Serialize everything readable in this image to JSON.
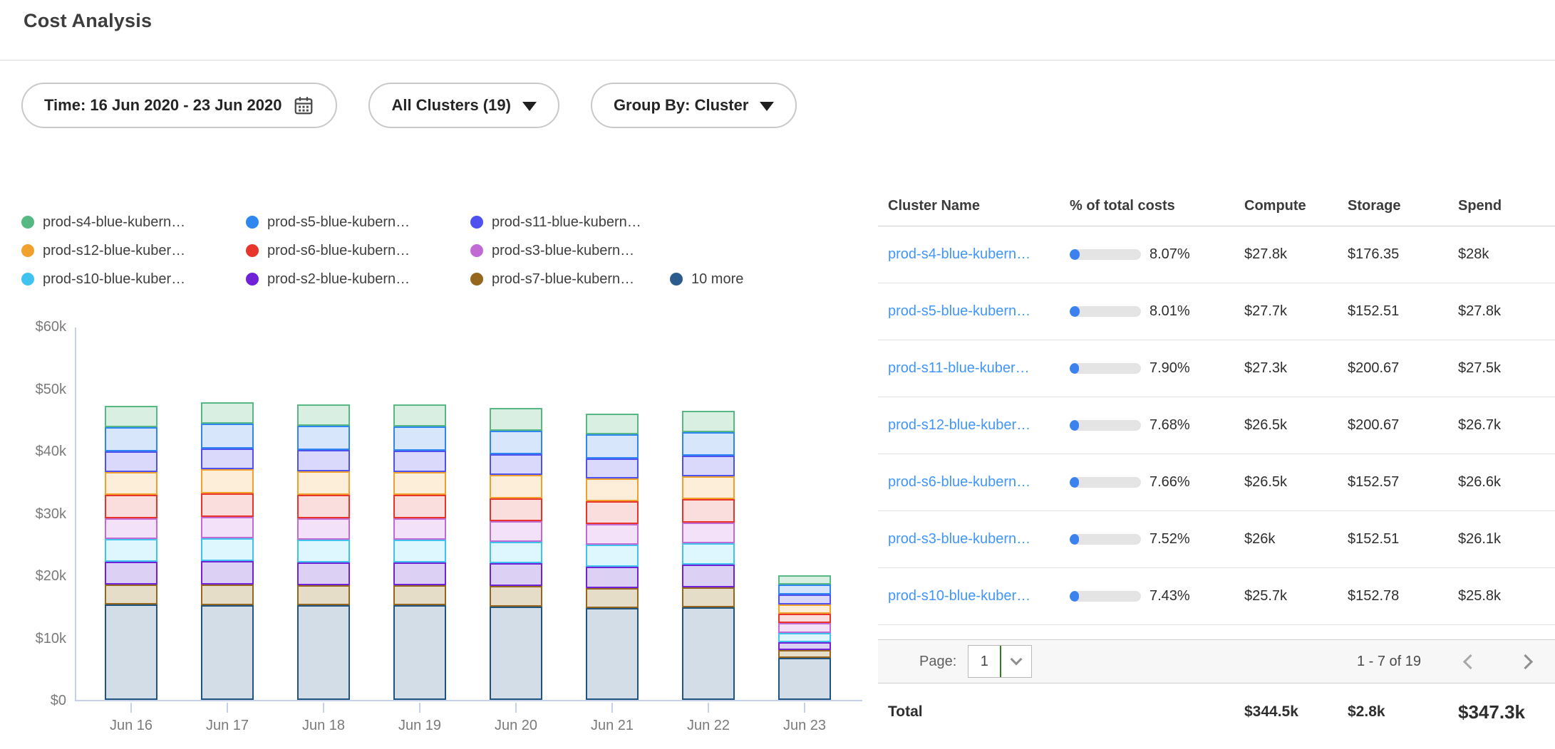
{
  "page": {
    "title": "Cost Analysis"
  },
  "filters": {
    "time_label": "Time: 16 Jun 2020 - 23 Jun 2020",
    "clusters_label": "All Clusters (19)",
    "group_by_label": "Group By: Cluster"
  },
  "colors": {
    "link_blue": "#4196f8",
    "progress_fill": "#3b82f0",
    "progress_track": "#e4e4e4",
    "axis_line": "#c5d0ec",
    "select_divider_green": "#2e7d1f",
    "pagebar_bg": "#f7f7f7"
  },
  "chart_data": {
    "type": "bar",
    "stacked": true,
    "title": "",
    "xlabel": "",
    "ylabel": "",
    "unit": "USD",
    "grid": false,
    "legend_position": "top-left",
    "ylim": [
      0,
      60000
    ],
    "y_ticks": [
      {
        "label": "$60k",
        "value": 60000
      },
      {
        "label": "$50k",
        "value": 50000
      },
      {
        "label": "$40k",
        "value": 40000
      },
      {
        "label": "$30k",
        "value": 30000
      },
      {
        "label": "$20k",
        "value": 20000
      },
      {
        "label": "$10k",
        "value": 10000
      },
      {
        "label": "$0",
        "value": 0
      }
    ],
    "categories": [
      "Jun 16",
      "Jun 17",
      "Jun 18",
      "Jun 19",
      "Jun 20",
      "Jun 21",
      "Jun 22",
      "Jun 23"
    ],
    "series": [
      {
        "name": "prod-s4-blue-kubern…",
        "color": "#57b884",
        "fill": "#d8efe2",
        "values": [
          3400,
          3450,
          3400,
          3500,
          3700,
          3300,
          3400,
          1500
        ]
      },
      {
        "name": "prod-s5-blue-kubern…",
        "color": "#2e86f0",
        "fill": "#d8e6fb",
        "values": [
          3900,
          3950,
          3900,
          3900,
          3800,
          3800,
          3800,
          1600
        ]
      },
      {
        "name": "prod-s11-blue-kubern…",
        "color": "#4f52ef",
        "fill": "#dbd9fb",
        "values": [
          3300,
          3400,
          3400,
          3400,
          3300,
          3300,
          3300,
          1600
        ]
      },
      {
        "name": "prod-s12-blue-kuber…",
        "color": "#f0a12d",
        "fill": "#fceed8",
        "values": [
          3700,
          3800,
          3800,
          3700,
          3700,
          3600,
          3700,
          1500
        ]
      },
      {
        "name": "prod-s6-blue-kubern…",
        "color": "#e8342a",
        "fill": "#fadedd",
        "values": [
          3800,
          3800,
          3800,
          3800,
          3700,
          3700,
          3700,
          1500
        ]
      },
      {
        "name": "prod-s3-blue-kubern…",
        "color": "#c06ad4",
        "fill": "#f3e1f9",
        "values": [
          3300,
          3400,
          3400,
          3400,
          3300,
          3300,
          3300,
          1500
        ]
      },
      {
        "name": "prod-s10-blue-kuber…",
        "color": "#3fc2ee",
        "fill": "#def6fd",
        "values": [
          3600,
          3700,
          3600,
          3600,
          3500,
          3500,
          3500,
          1500
        ]
      },
      {
        "name": "prod-s2-blue-kubern…",
        "color": "#6f22d8",
        "fill": "#ddd0f5",
        "values": [
          3700,
          3800,
          3700,
          3700,
          3600,
          3500,
          3600,
          1300
        ]
      },
      {
        "name": "prod-s7-blue-kubern…",
        "color": "#96661c",
        "fill": "#e6ddc9",
        "values": [
          3200,
          3300,
          3200,
          3200,
          3300,
          3100,
          3200,
          1200
        ]
      },
      {
        "name": "10 more",
        "color": "#2a5d8c",
        "fill": "#d2dde8",
        "stroke": "#1f5380",
        "values": [
          15300,
          15200,
          15200,
          15200,
          15000,
          14800,
          14900,
          6800
        ]
      }
    ],
    "stack_order": [
      "10 more",
      "prod-s7-blue-kubern…",
      "prod-s2-blue-kubern…",
      "prod-s10-blue-kuber…",
      "prod-s3-blue-kubern…",
      "prod-s6-blue-kubern…",
      "prod-s12-blue-kuber…",
      "prod-s11-blue-kubern…",
      "prod-s5-blue-kubern…",
      "prod-s4-blue-kubern…"
    ],
    "legend_rows": [
      [
        "prod-s4-blue-kubern…",
        "prod-s5-blue-kubern…",
        "prod-s11-blue-kubern…"
      ],
      [
        "prod-s12-blue-kuber…",
        "prod-s6-blue-kubern…",
        "prod-s3-blue-kubern…"
      ],
      [
        "prod-s10-blue-kuber…",
        "prod-s2-blue-kubern…",
        "prod-s7-blue-kubern…",
        "10 more"
      ]
    ]
  },
  "table": {
    "columns": [
      "Cluster Name",
      "% of total costs",
      "Compute",
      "Storage",
      "Spend"
    ],
    "rows": [
      {
        "name": "prod-s4-blue-kubern…",
        "pct": "8.07%",
        "pct_value": 8.07,
        "compute": "$27.8k",
        "storage": "$176.35",
        "spend": "$28k"
      },
      {
        "name": "prod-s5-blue-kubern…",
        "pct": "8.01%",
        "pct_value": 8.01,
        "compute": "$27.7k",
        "storage": "$152.51",
        "spend": "$27.8k"
      },
      {
        "name": "prod-s11-blue-kuber…",
        "pct": "7.90%",
        "pct_value": 7.9,
        "compute": "$27.3k",
        "storage": "$200.67",
        "spend": "$27.5k"
      },
      {
        "name": "prod-s12-blue-kuber…",
        "pct": "7.68%",
        "pct_value": 7.68,
        "compute": "$26.5k",
        "storage": "$200.67",
        "spend": "$26.7k"
      },
      {
        "name": "prod-s6-blue-kubern…",
        "pct": "7.66%",
        "pct_value": 7.66,
        "compute": "$26.5k",
        "storage": "$152.57",
        "spend": "$26.6k"
      },
      {
        "name": "prod-s3-blue-kubern…",
        "pct": "7.52%",
        "pct_value": 7.52,
        "compute": "$26k",
        "storage": "$152.51",
        "spend": "$26.1k"
      },
      {
        "name": "prod-s10-blue-kuber…",
        "pct": "7.43%",
        "pct_value": 7.43,
        "compute": "$25.7k",
        "storage": "$152.78",
        "spend": "$25.8k"
      }
    ],
    "pagination": {
      "page_label": "Page:",
      "page": "1",
      "range": "1 - 7 of 19"
    },
    "total": {
      "label": "Total",
      "compute": "$344.5k",
      "storage": "$2.8k",
      "spend": "$347.3k"
    }
  }
}
